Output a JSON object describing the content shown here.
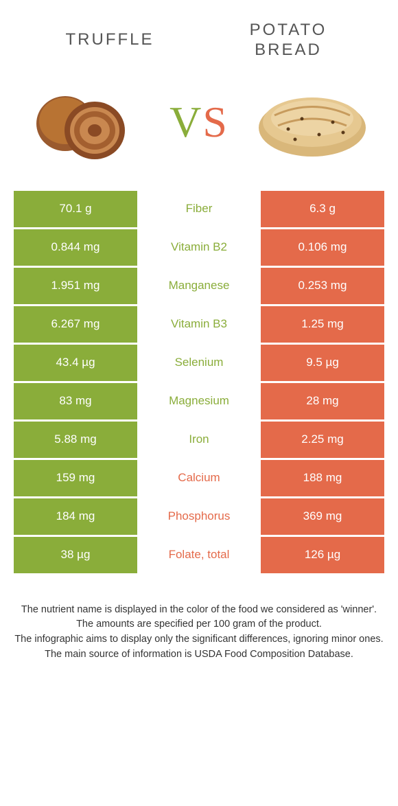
{
  "header": {
    "left_title": "Truffle",
    "right_title_line1": "Potato",
    "right_title_line2": "bread"
  },
  "vs": {
    "v": "V",
    "s": "S"
  },
  "colors": {
    "green": "#8aad3a",
    "orange": "#e46a4a",
    "white": "#ffffff",
    "text_gray": "#555555"
  },
  "rows": [
    {
      "left": "70.1 g",
      "label": "Fiber",
      "right": "6.3 g",
      "winner": "green"
    },
    {
      "left": "0.844 mg",
      "label": "Vitamin B2",
      "right": "0.106 mg",
      "winner": "green"
    },
    {
      "left": "1.951 mg",
      "label": "Manganese",
      "right": "0.253 mg",
      "winner": "green"
    },
    {
      "left": "6.267 mg",
      "label": "Vitamin B3",
      "right": "1.25 mg",
      "winner": "green"
    },
    {
      "left": "43.4 µg",
      "label": "Selenium",
      "right": "9.5 µg",
      "winner": "green"
    },
    {
      "left": "83 mg",
      "label": "Magnesium",
      "right": "28 mg",
      "winner": "green"
    },
    {
      "left": "5.88 mg",
      "label": "Iron",
      "right": "2.25 mg",
      "winner": "green"
    },
    {
      "left": "159 mg",
      "label": "Calcium",
      "right": "188 mg",
      "winner": "orange"
    },
    {
      "left": "184 mg",
      "label": "Phosphorus",
      "right": "369 mg",
      "winner": "orange"
    },
    {
      "left": "38 µg",
      "label": "Folate, total",
      "right": "126 µg",
      "winner": "orange"
    }
  ],
  "footer": {
    "line1": "The nutrient name is displayed in the color of the food we considered as 'winner'.",
    "line2": "The amounts are specified per 100 gram of the product.",
    "line3": "The infographic aims to display only the significant differences, ignoring minor ones.",
    "line4": "The main source of information is USDA Food Composition Database."
  }
}
